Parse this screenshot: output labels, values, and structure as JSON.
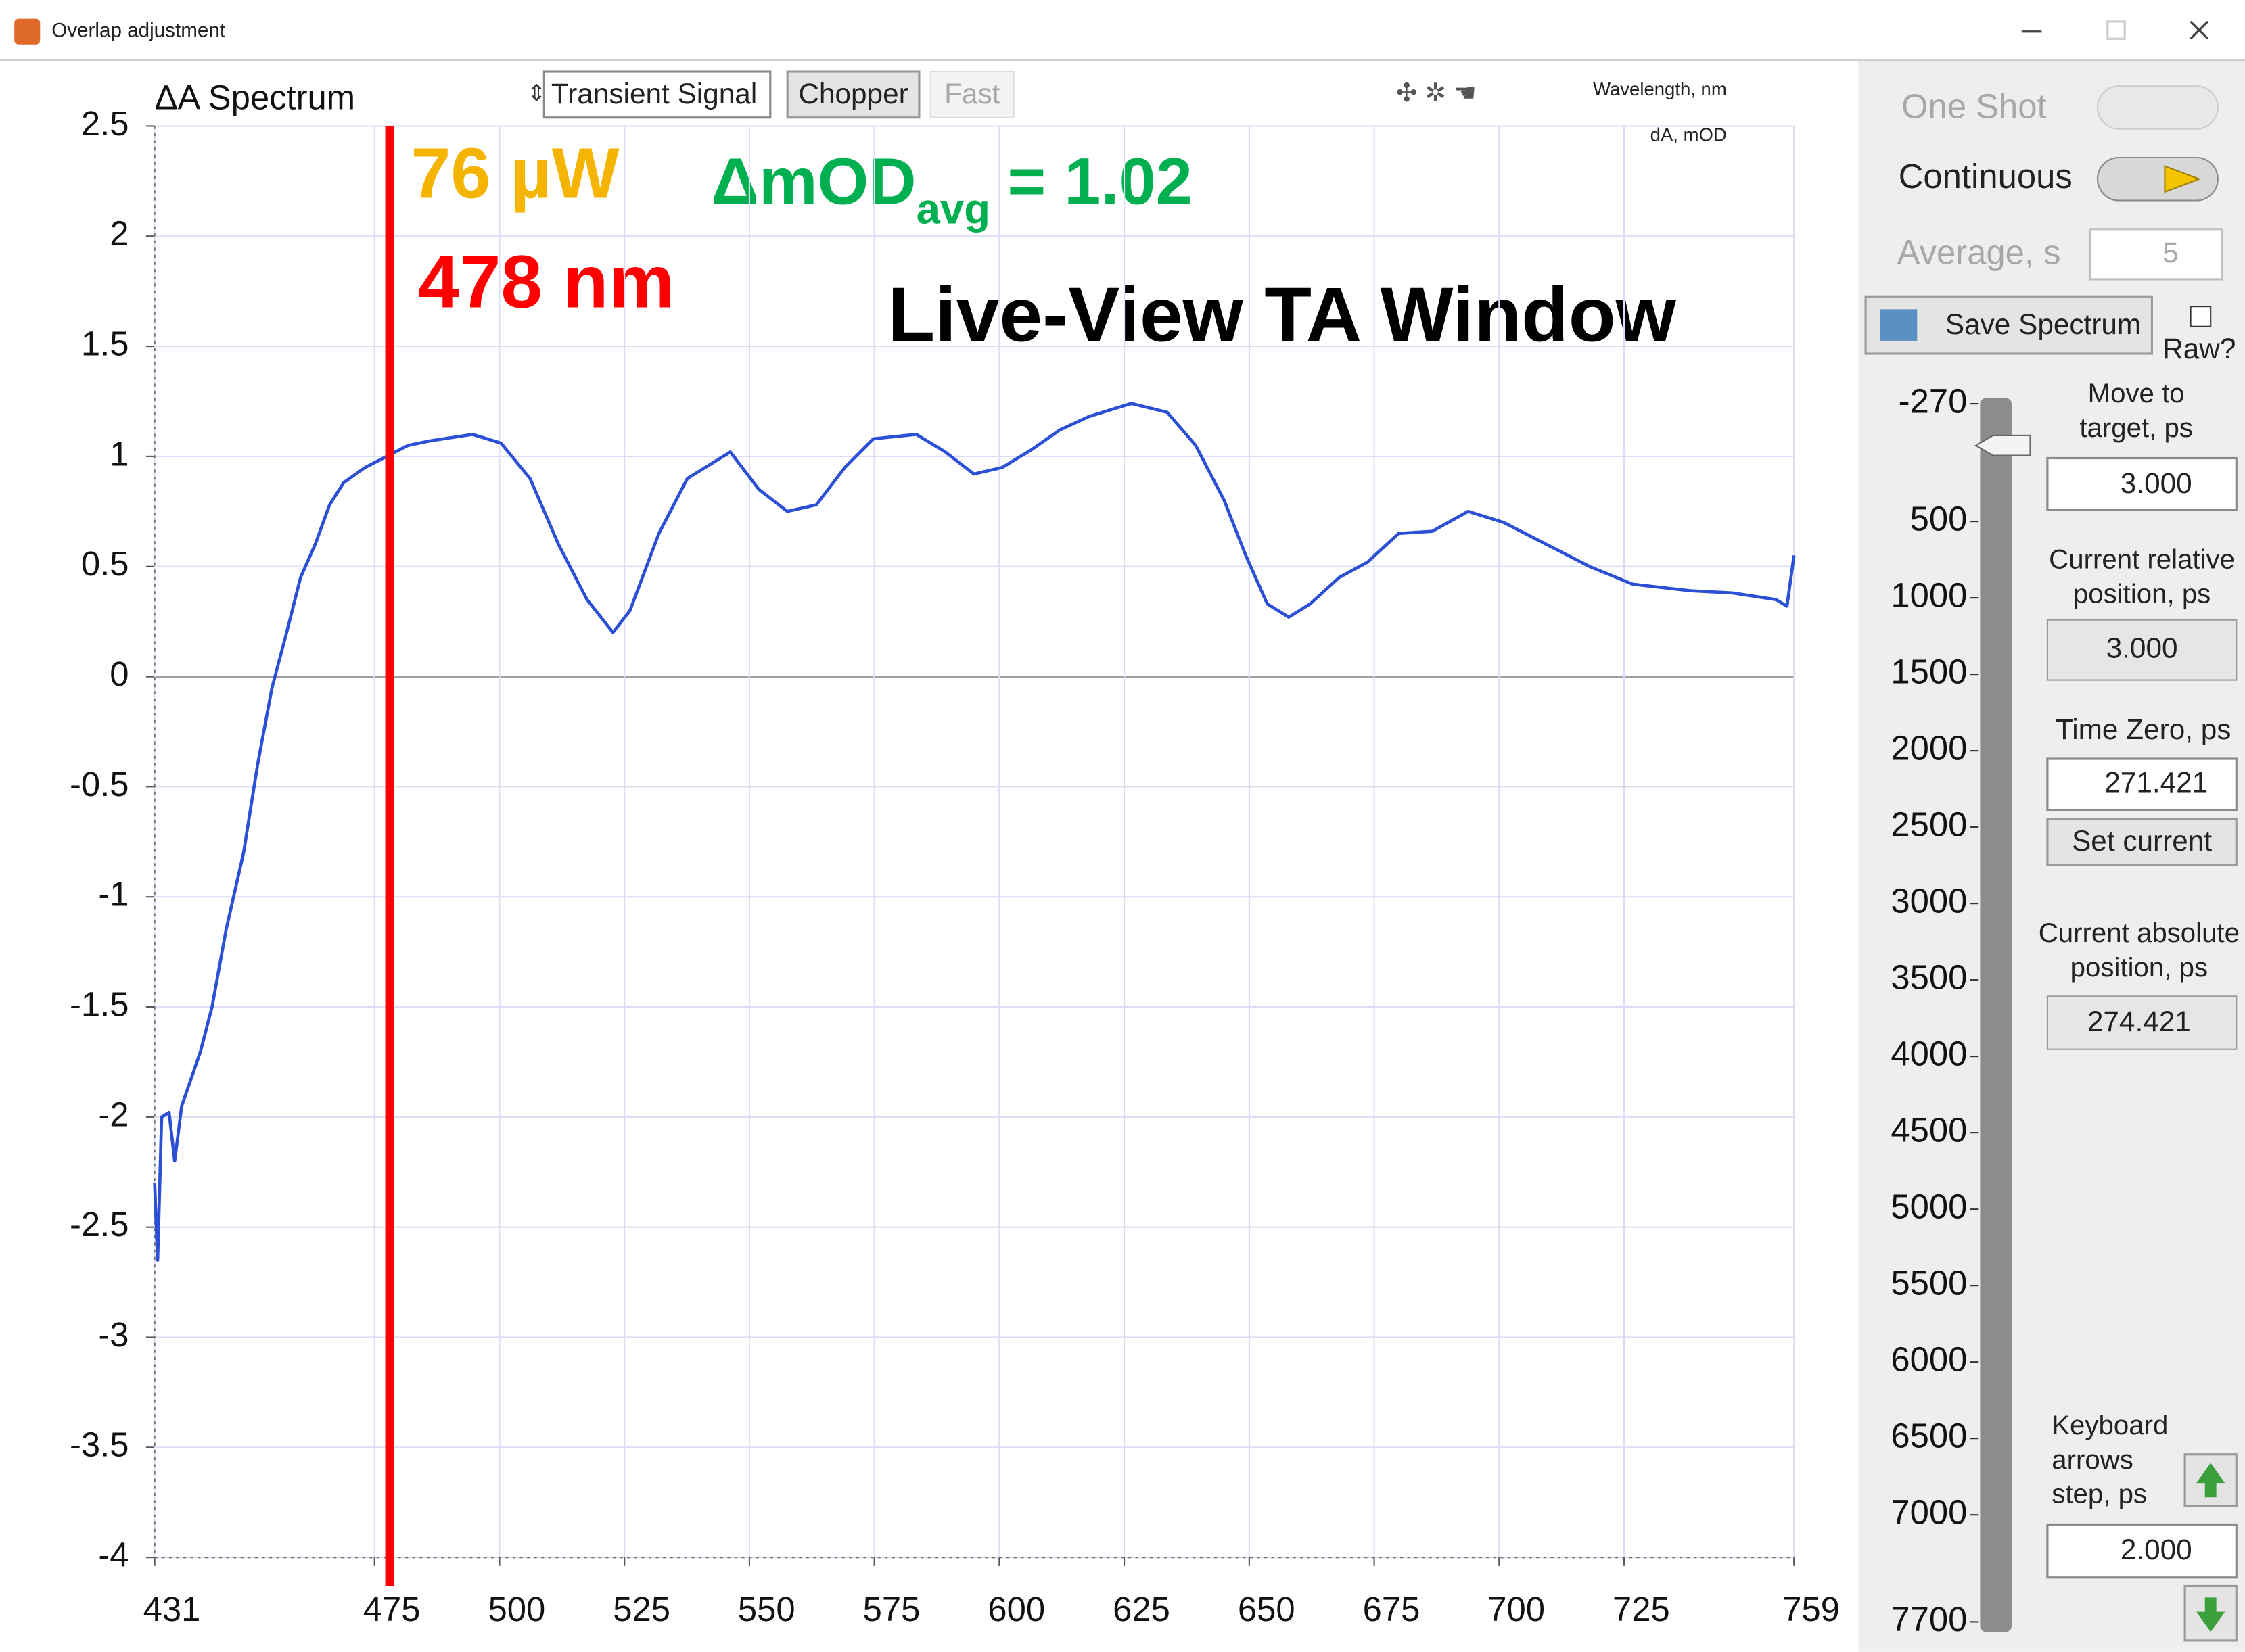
{
  "window": {
    "title": "Overlap adjustment"
  },
  "toolbar": {
    "plot_title": "ΔA Spectrum",
    "signal": "Transient Signal",
    "chopper": "Chopper",
    "fast": "Fast",
    "x_axis_name": "Wavelength, nm",
    "y_axis_name": "dA, mOD"
  },
  "chart_data": {
    "type": "line",
    "x": [
      431.0,
      431.6,
      432.4,
      433.9,
      435.0,
      436.4,
      438.7,
      440.2,
      442.5,
      445.3,
      448.8,
      451.6,
      454.5,
      457.4,
      460.2,
      463.1,
      466.0,
      468.8,
      473.1,
      477.4,
      481.7,
      486.0,
      494.6,
      500.3,
      506.1,
      511.8,
      517.5,
      522.7,
      526.1,
      531.9,
      537.6,
      546.2,
      551.9,
      557.6,
      563.4,
      569.1,
      574.8,
      583.4,
      589.2,
      594.9,
      600.6,
      606.4,
      612.1,
      617.8,
      626.4,
      633.6,
      639.3,
      645.0,
      649.3,
      653.6,
      657.9,
      662.2,
      668.0,
      673.7,
      679.9,
      686.6,
      693.8,
      700.9,
      709.5,
      718.1,
      726.7,
      738.2,
      746.8,
      755.4,
      757.6,
      759.0
    ],
    "series": [
      {
        "name": "ΔA",
        "color": "#2b50d6",
        "values": [
          -2.3,
          -2.65,
          -2.0,
          -1.98,
          -2.2,
          -1.95,
          -1.8,
          -1.7,
          -1.5,
          -1.15,
          -0.8,
          -0.4,
          -0.05,
          0.2,
          0.45,
          0.6,
          0.78,
          0.88,
          0.95,
          1.0,
          1.05,
          1.07,
          1.1,
          1.06,
          0.9,
          0.6,
          0.35,
          0.2,
          0.3,
          0.65,
          0.9,
          1.02,
          0.85,
          0.75,
          0.78,
          0.95,
          1.08,
          1.1,
          1.02,
          0.92,
          0.95,
          1.03,
          1.12,
          1.18,
          1.24,
          1.2,
          1.05,
          0.8,
          0.55,
          0.33,
          0.27,
          0.33,
          0.45,
          0.52,
          0.65,
          0.66,
          0.75,
          0.7,
          0.6,
          0.5,
          0.42,
          0.39,
          0.38,
          0.35,
          0.32,
          0.55
        ]
      }
    ],
    "xlim": [
      431,
      759
    ],
    "xticks": [
      431,
      475,
      500,
      525,
      550,
      575,
      600,
      625,
      650,
      675,
      700,
      725,
      759
    ],
    "ylim": [
      -4,
      2.5
    ],
    "yticks": [
      2.5,
      2,
      1.5,
      1,
      0.5,
      0,
      -0.5,
      -1,
      -1.5,
      -2,
      -2.5,
      -3,
      -3.5,
      -4
    ],
    "grid": true,
    "marker": {
      "x": 478,
      "label": "478 nm",
      "color": "#ff0000"
    },
    "annotations": {
      "power": "76 µW",
      "delta": "ΔmOD",
      "delta_sub": "avg",
      "delta_value": "= 1.02",
      "caption": "Live-View TA Window"
    }
  },
  "panel": {
    "one_shot": "One Shot",
    "continuous": "Continuous",
    "average": "Average, s",
    "average_value": "5",
    "save": "Save Spectrum",
    "raw": "Raw?",
    "move_label": [
      "Move to",
      "target, ps"
    ],
    "move_value": "3.000",
    "rel_label": [
      "Current relative",
      "position, ps"
    ],
    "rel_value": "3.000",
    "rel_position": 3,
    "zero_label": "Time Zero, ps",
    "zero_value": "271.421",
    "set_current": "Set current",
    "abs_label": [
      "Current absolute",
      "position, ps"
    ],
    "abs_value": "274.421",
    "step_label": [
      "Keyboard",
      "arrows",
      "step, ps"
    ],
    "step_value": "2.000",
    "slider": {
      "ylim": [
        -270,
        7700
      ],
      "yticks": [
        -270,
        500,
        1000,
        1500,
        2000,
        2500,
        3000,
        3500,
        4000,
        4500,
        5000,
        5500,
        6000,
        6500,
        7000,
        7700
      ]
    }
  }
}
